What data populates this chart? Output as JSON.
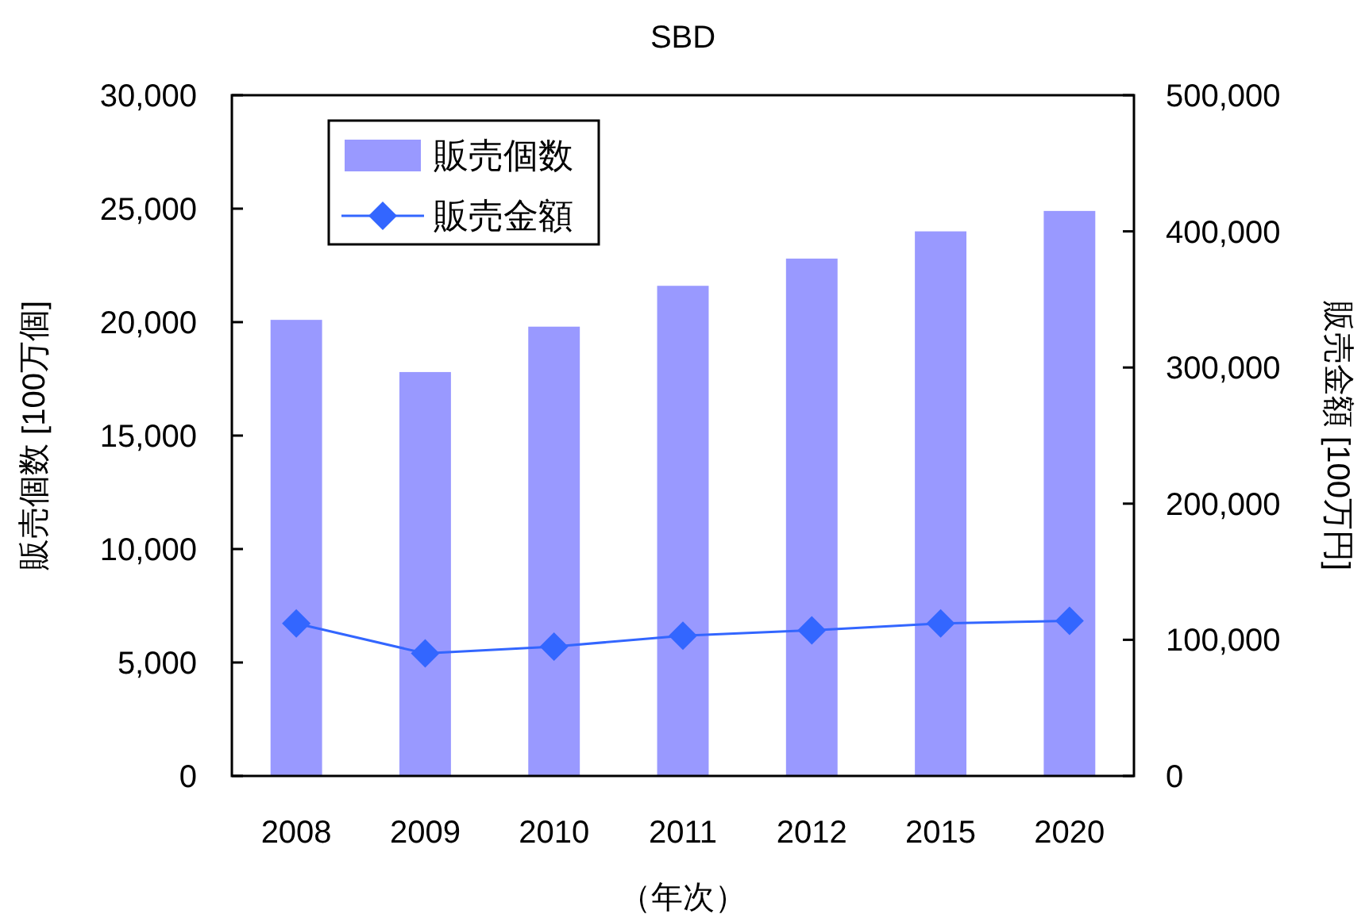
{
  "chart_data": {
    "type": "bar",
    "title": "SBD",
    "xlabel": "（年次）",
    "ylabel": "販売個数 [100万個]",
    "y2label": "販売金額 [100万円]",
    "categories": [
      "2008",
      "2009",
      "2010",
      "2011",
      "2012",
      "2015",
      "2020"
    ],
    "series": [
      {
        "name": "販売個数",
        "color": "#9999ff",
        "values": [
          20100,
          17800,
          19800,
          21600,
          22800,
          24000,
          24900
        ]
      },
      {
        "name": "販売金額",
        "type": "line",
        "axis": "y2",
        "color": "#3366ff",
        "marker": "diamond",
        "values": [
          112000,
          90000,
          95000,
          103000,
          107000,
          112000,
          114000
        ]
      }
    ],
    "ylim": [
      0,
      30000
    ],
    "yticks": [
      {
        "value": 0,
        "label": "0"
      },
      {
        "value": 5000,
        "label": "5,000"
      },
      {
        "value": 10000,
        "label": "10,000"
      },
      {
        "value": 15000,
        "label": "15,000"
      },
      {
        "value": 20000,
        "label": "20,000"
      },
      {
        "value": 25000,
        "label": "25,000"
      },
      {
        "value": 30000,
        "label": "30,000"
      }
    ],
    "y2lim": [
      0,
      500000
    ],
    "y2ticks": [
      {
        "value": 0,
        "label": "0"
      },
      {
        "value": 100000,
        "label": "100,000"
      },
      {
        "value": 200000,
        "label": "200,000"
      },
      {
        "value": 300000,
        "label": "300,000"
      },
      {
        "value": 400000,
        "label": "400,000"
      },
      {
        "value": 500000,
        "label": "500,000"
      }
    ],
    "legend": "top left",
    "grid": false
  }
}
